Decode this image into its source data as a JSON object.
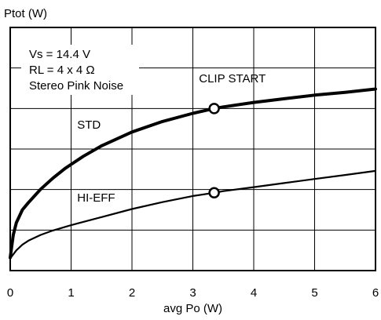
{
  "chart_data": {
    "type": "line",
    "ylabel": "Ptot (W)",
    "xlabel": "avg Po (W)",
    "xlim": [
      0,
      6
    ],
    "xticks": [
      0,
      1,
      2,
      3,
      4,
      5,
      6
    ],
    "y_grid_divisions": 6,
    "grid": true,
    "conditions": [
      "Vs = 14.4 V",
      "RL = 4 x 4 Ω",
      "Stereo Pink Noise"
    ],
    "series": [
      {
        "name": "STD",
        "x": [
          0,
          0.05,
          0.1,
          0.2,
          0.3,
          0.5,
          0.7,
          0.9,
          1.0,
          1.2,
          1.5,
          2.0,
          2.5,
          3.0,
          3.35,
          3.5,
          4.0,
          4.5,
          5.0,
          5.5,
          6.0
        ],
        "y": [
          0.32,
          0.88,
          1.18,
          1.5,
          1.68,
          2.01,
          2.28,
          2.52,
          2.62,
          2.82,
          3.08,
          3.42,
          3.68,
          3.88,
          4.0,
          4.04,
          4.15,
          4.24,
          4.33,
          4.4,
          4.48
        ],
        "color": "#000000"
      },
      {
        "name": "HI-EFF",
        "x": [
          0,
          0.05,
          0.1,
          0.2,
          0.3,
          0.5,
          0.7,
          1.0,
          1.5,
          2.0,
          2.5,
          3.0,
          3.35,
          3.5,
          4.0,
          4.5,
          5.0,
          5.5,
          6.0
        ],
        "y": [
          0.3,
          0.4,
          0.5,
          0.64,
          0.74,
          0.88,
          0.99,
          1.12,
          1.32,
          1.52,
          1.69,
          1.84,
          1.92,
          1.96,
          2.06,
          2.16,
          2.26,
          2.36,
          2.46
        ],
        "color": "#000000"
      }
    ],
    "markers": [
      {
        "series": "STD",
        "x": 3.35,
        "y": 4.0
      },
      {
        "series": "HI-EFF",
        "x": 3.35,
        "y": 1.92
      }
    ],
    "annotations": [
      {
        "text": "CLIP START",
        "x": 3.1,
        "y": 4.65
      },
      {
        "text": "STD",
        "x": 1.1,
        "y": 3.5
      },
      {
        "text": "HI-EFF",
        "x": 1.1,
        "y": 1.7
      }
    ]
  }
}
